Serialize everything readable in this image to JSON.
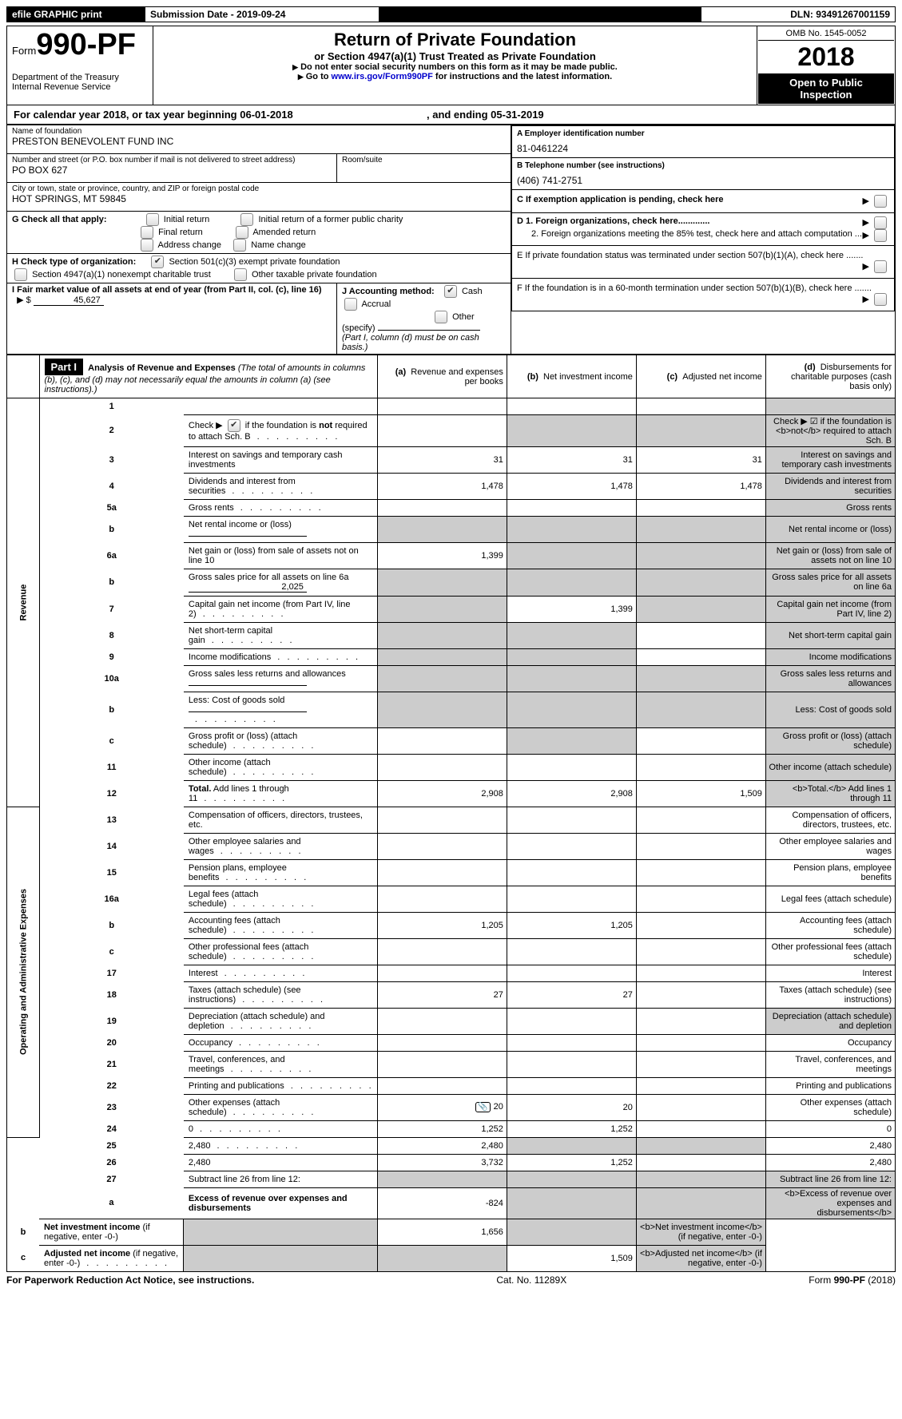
{
  "top_bar": {
    "efile": "efile GRAPHIC print",
    "submission_label": "Submission Date - ",
    "submission_date": "2019-09-24",
    "dln_label": "DLN: ",
    "dln": "93491267001159"
  },
  "header": {
    "form_word": "Form",
    "form_num": "990-PF",
    "dept": "Department of the Treasury",
    "irs": "Internal Revenue Service",
    "title": "Return of Private Foundation",
    "subtitle": "or Section 4947(a)(1) Trust Treated as Private Foundation",
    "warn": "Do not enter social security numbers on this form as it may be made public.",
    "goto_pre": "Go to ",
    "goto_link": "www.irs.gov/Form990PF",
    "goto_post": " for instructions and the latest information.",
    "omb": "OMB No. 1545-0052",
    "year": "2018",
    "inspect1": "Open to Public",
    "inspect2": "Inspection"
  },
  "cal_year": {
    "pre": "For calendar year 2018, or tax year beginning ",
    "begin": "06-01-2018",
    "mid": ", and ending ",
    "end": "05-31-2019"
  },
  "info": {
    "name_label": "Name of foundation",
    "name": "PRESTON BENEVOLENT FUND INC",
    "street_label": "Number and street (or P.O. box number if mail is not delivered to street address)",
    "street": "PO BOX 627",
    "room_label": "Room/suite",
    "city_label": "City or town, state or province, country, and ZIP or foreign postal code",
    "city": "HOT SPRINGS, MT  59845",
    "A_label": "A Employer identification number",
    "A_val": "81-0461224",
    "B_label": "B Telephone number (see instructions)",
    "B_val": "(406) 741-2751",
    "C_label": "C  If exemption application is pending, check here",
    "G_label": "G Check all that apply:",
    "G_opts": [
      "Initial return",
      "Initial return of a former public charity",
      "Final return",
      "Amended return",
      "Address change",
      "Name change"
    ],
    "D1_label": "D 1. Foreign organizations, check here.............",
    "D2_label": "2. Foreign organizations meeting the 85% test, check here and attach computation ...",
    "E_label": "E   If private foundation status was terminated under section 507(b)(1)(A), check here .......",
    "F_label": "F   If the foundation is in a 60-month termination under section 507(b)(1)(B), check here .......",
    "H_label": "H Check type of organization:",
    "H1": "Section 501(c)(3) exempt private foundation",
    "H2": "Section 4947(a)(1) nonexempt charitable trust",
    "H3": "Other taxable private foundation",
    "I_label": "I Fair market value of all assets at end of year (from Part II, col. (c), line 16)",
    "I_val": "45,627",
    "J_label": "J Accounting method:",
    "J_cash": "Cash",
    "J_accrual": "Accrual",
    "J_other": "Other (specify)",
    "J_note": "(Part I, column (d) must be on cash basis.)"
  },
  "part1": {
    "label": "Part I",
    "title": "Analysis of Revenue and Expenses",
    "title_note": "(The total of amounts in columns (b), (c), and (d) may not necessarily equal the amounts in column (a) (see instructions).)",
    "col_a": "Revenue and expenses per books",
    "col_b": "Net investment income",
    "col_c": "Adjusted net income",
    "col_d": "Disbursements for charitable purposes (cash basis only)",
    "side_rev": "Revenue",
    "side_exp": "Operating and Administrative Expenses"
  },
  "rows": [
    {
      "n": "1",
      "d": "",
      "a": "",
      "b": "",
      "c": "",
      "shade_d": true
    },
    {
      "n": "2",
      "d": "Check ▶ ☑ if the foundation is <b>not</b> required to attach Sch. B",
      "dots": true,
      "shade_b": true,
      "shade_c": true,
      "shade_d": true
    },
    {
      "n": "3",
      "d": "Interest on savings and temporary cash investments",
      "a": "31",
      "b": "31",
      "c": "31",
      "shade_d": true
    },
    {
      "n": "4",
      "d": "Dividends and interest from securities",
      "dots": true,
      "a": "1,478",
      "b": "1,478",
      "c": "1,478",
      "shade_d": true
    },
    {
      "n": "5a",
      "d": "Gross rents",
      "dots": true,
      "shade_d": true
    },
    {
      "n": "b",
      "d": "Net rental income or (loss)",
      "inline": true,
      "shade_a": true,
      "shade_b": true,
      "shade_c": true,
      "shade_d": true
    },
    {
      "n": "6a",
      "d": "Net gain or (loss) from sale of assets not on line 10",
      "a": "1,399",
      "shade_b": true,
      "shade_c": true,
      "shade_d": true
    },
    {
      "n": "b",
      "d": "Gross sales price for all assets on line 6a",
      "inline": true,
      "inline_val": "2,025",
      "shade_a": true,
      "shade_b": true,
      "shade_c": true,
      "shade_d": true
    },
    {
      "n": "7",
      "d": "Capital gain net income (from Part IV, line 2)",
      "dots": true,
      "shade_a": true,
      "b": "1,399",
      "shade_c": true,
      "shade_d": true
    },
    {
      "n": "8",
      "d": "Net short-term capital gain",
      "dots": true,
      "shade_a": true,
      "shade_b": true,
      "shade_d": true
    },
    {
      "n": "9",
      "d": "Income modifications",
      "dots": true,
      "shade_a": true,
      "shade_b": true,
      "shade_d": true
    },
    {
      "n": "10a",
      "d": "Gross sales less returns and allowances",
      "inline": true,
      "shade_a": true,
      "shade_b": true,
      "shade_c": true,
      "shade_d": true
    },
    {
      "n": "b",
      "d": "Less: Cost of goods sold",
      "dots": true,
      "inline": true,
      "shade_a": true,
      "shade_b": true,
      "shade_c": true,
      "shade_d": true
    },
    {
      "n": "c",
      "d": "Gross profit or (loss) (attach schedule)",
      "dots": true,
      "shade_b": true,
      "shade_d": true
    },
    {
      "n": "11",
      "d": "Other income (attach schedule)",
      "dots": true,
      "shade_d": true
    },
    {
      "n": "12",
      "d": "<b>Total.</b> Add lines 1 through 11",
      "dots": true,
      "a": "2,908",
      "b": "2,908",
      "c": "1,509",
      "shade_d": true
    },
    {
      "n": "13",
      "d": "Compensation of officers, directors, trustees, etc."
    },
    {
      "n": "14",
      "d": "Other employee salaries and wages",
      "dots": true
    },
    {
      "n": "15",
      "d": "Pension plans, employee benefits",
      "dots": true
    },
    {
      "n": "16a",
      "d": "Legal fees (attach schedule)",
      "dots": true
    },
    {
      "n": "b",
      "d": "Accounting fees (attach schedule)",
      "dots": true,
      "a": "1,205",
      "b": "1,205"
    },
    {
      "n": "c",
      "d": "Other professional fees (attach schedule)",
      "dots": true
    },
    {
      "n": "17",
      "d": "Interest",
      "dots": true
    },
    {
      "n": "18",
      "d": "Taxes (attach schedule) (see instructions)",
      "dots": true,
      "a": "27",
      "b": "27"
    },
    {
      "n": "19",
      "d": "Depreciation (attach schedule) and depletion",
      "dots": true,
      "shade_d": true
    },
    {
      "n": "20",
      "d": "Occupancy",
      "dots": true
    },
    {
      "n": "21",
      "d": "Travel, conferences, and meetings",
      "dots": true
    },
    {
      "n": "22",
      "d": "Printing and publications",
      "dots": true
    },
    {
      "n": "23",
      "d": "Other expenses (attach schedule)",
      "dots": true,
      "icon": true,
      "a": "20",
      "b": "20"
    },
    {
      "n": "24",
      "d": "0",
      "dots": true,
      "a": "1,252",
      "b": "1,252"
    },
    {
      "n": "25",
      "d": "2,480",
      "dots": true,
      "a": "2,480",
      "shade_b": true,
      "shade_c": true
    },
    {
      "n": "26",
      "d": "2,480",
      "a": "3,732",
      "b": "1,252",
      "c": ""
    },
    {
      "n": "27",
      "d": "Subtract line 26 from line 12:",
      "shade_a": true,
      "shade_b": true,
      "shade_c": true,
      "shade_d": true
    },
    {
      "n": "a",
      "d": "<b>Excess of revenue over expenses and disbursements</b>",
      "a": "-824",
      "shade_b": true,
      "shade_c": true,
      "shade_d": true
    },
    {
      "n": "b",
      "d": "<b>Net investment income</b> (if negative, enter -0-)",
      "shade_a": true,
      "b": "1,656",
      "shade_c": true,
      "shade_d": true
    },
    {
      "n": "c",
      "d": "<b>Adjusted net income</b> (if negative, enter -0-)",
      "dots": true,
      "shade_a": true,
      "shade_b": true,
      "c": "1,509",
      "shade_d": true
    }
  ],
  "footer": {
    "left": "For Paperwork Reduction Act Notice, see instructions.",
    "mid": "Cat. No. 11289X",
    "right_pre": "Form ",
    "right_form": "990-PF",
    "right_post": " (2018)"
  }
}
